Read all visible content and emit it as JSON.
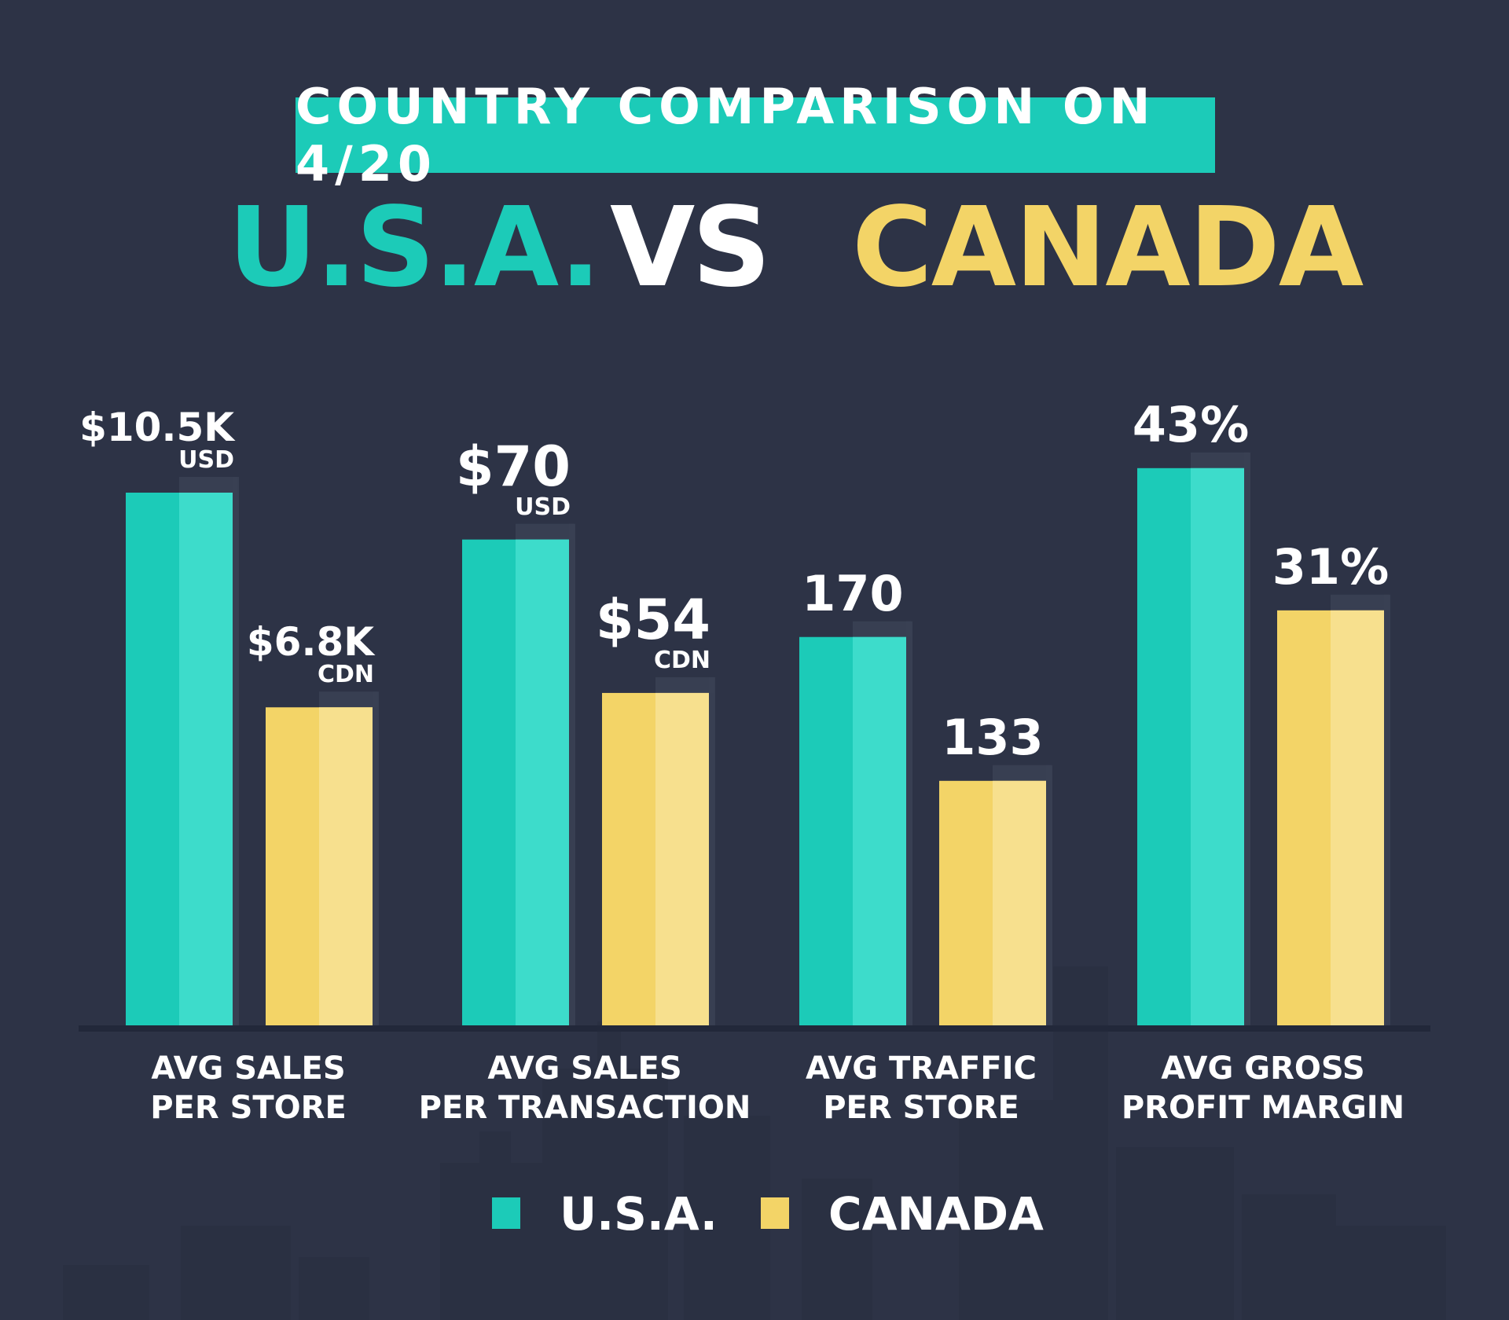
{
  "header": {
    "title": "COUNTRY COMPARISON ON 4/20",
    "left_country": "U.S.A.",
    "vs": "VS",
    "right_country": "CANADA"
  },
  "colors": {
    "background": "#2d3346",
    "usa": "#1ccbb8",
    "usa_light": "#3ddccb",
    "canada": "#f3d467",
    "canada_light": "#f7e08e",
    "baseline": "#22283a"
  },
  "chart_data": {
    "type": "bar",
    "title": "COUNTRY COMPARISON ON 4/20",
    "categories": [
      [
        "AVG SALES",
        "PER STORE"
      ],
      [
        "AVG SALES",
        "PER TRANSACTION"
      ],
      [
        "AVG TRAFFIC",
        "PER STORE"
      ],
      [
        "AVG GROSS",
        "PROFIT MARGIN"
      ]
    ],
    "series": [
      {
        "name": "U.S.A.",
        "values": [
          1.0,
          0.912,
          0.729,
          1.046
        ],
        "labels": [
          {
            "main": "$10.5K",
            "unit": "USD"
          },
          {
            "main": "$70",
            "unit": "USD"
          },
          {
            "main": "170",
            "unit": ""
          },
          {
            "main": "43%",
            "unit": ""
          }
        ]
      },
      {
        "name": "CANADA",
        "values": [
          0.597,
          0.624,
          0.459,
          0.779
        ],
        "labels": [
          {
            "main": "$6.8K",
            "unit": "CDN"
          },
          {
            "main": "$54",
            "unit": "CDN"
          },
          {
            "main": "133",
            "unit": ""
          },
          {
            "main": "31%",
            "unit": ""
          }
        ]
      }
    ],
    "grid": false,
    "legend": "bottom-center"
  },
  "legend": {
    "usa_label": "U.S.A.",
    "canada_label": "CANADA"
  }
}
